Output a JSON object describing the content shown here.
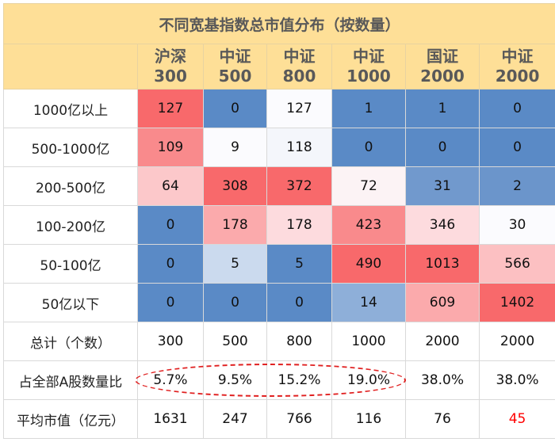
{
  "title": "不同宽基指数总市值分布（按数量）",
  "columns": [
    {
      "line1": "沪深",
      "line2": "300"
    },
    {
      "line1": "中证",
      "line2": "500"
    },
    {
      "line1": "中证",
      "line2": "800"
    },
    {
      "line1": "中证",
      "line2": "1000"
    },
    {
      "line1": "国证",
      "line2": "2000"
    },
    {
      "line1": "中证",
      "line2": "2000"
    }
  ],
  "rows": [
    {
      "label": "1000亿以上",
      "values": [
        "127",
        "0",
        "127",
        "1",
        "1",
        "0"
      ],
      "colors": [
        "#f8696b",
        "#5a8ac6",
        "#fbfbfe",
        "#5a8ac6",
        "#5a8ac6",
        "#5a8ac6"
      ]
    },
    {
      "label": "500-1000亿",
      "values": [
        "109",
        "9",
        "118",
        "0",
        "0",
        "0"
      ],
      "colors": [
        "#f98a8c",
        "#fbfbfe",
        "#f4f6fb",
        "#5a8ac6",
        "#5a8ac6",
        "#5a8ac6"
      ]
    },
    {
      "label": "200-500亿",
      "values": [
        "64",
        "308",
        "372",
        "72",
        "31",
        "2"
      ],
      "colors": [
        "#fcc8ca",
        "#f8696b",
        "#f8696b",
        "#fcf3f5",
        "#7199cd",
        "#6b95cb"
      ]
    },
    {
      "label": "100-200亿",
      "values": [
        "0",
        "178",
        "178",
        "423",
        "346",
        "30"
      ],
      "colors": [
        "#5a8ac6",
        "#fbaaac",
        "#fddbde",
        "#f98a8c",
        "#fddbde",
        "#fbfbfe"
      ]
    },
    {
      "label": "50-100亿",
      "values": [
        "0",
        "5",
        "5",
        "490",
        "1013",
        "566"
      ],
      "colors": [
        "#5a8ac6",
        "#cbdaee",
        "#5a8ac6",
        "#f8696b",
        "#f8696b",
        "#fcc0c2"
      ]
    },
    {
      "label": "50亿以下",
      "values": [
        "0",
        "0",
        "0",
        "14",
        "609",
        "1402"
      ],
      "colors": [
        "#5a8ac6",
        "#5a8ac6",
        "#5a8ac6",
        "#8eafd9",
        "#fbaaac",
        "#f8696b"
      ]
    }
  ],
  "summary": [
    {
      "label": "总计（个数）",
      "values": [
        "300",
        "500",
        "800",
        "1000",
        "2000",
        "2000"
      ]
    },
    {
      "label": "占全部A股数量比",
      "values": [
        "5.7%",
        "9.5%",
        "15.2%",
        "19.0%",
        "38.0%",
        "38.0%"
      ]
    },
    {
      "label": "平均市值（亿元）",
      "values": [
        "1631",
        "247",
        "766",
        "116",
        "76",
        "45"
      ],
      "highlight_last_color": "#ff0000"
    }
  ],
  "annotation": {
    "type": "dashed-ellipse",
    "color": "#e02020",
    "covers": [
      "5.7%",
      "9.5%",
      "15.2%",
      "19.0%"
    ]
  },
  "colors": {
    "header_bg": "#fedf97",
    "header_text": "#595959",
    "high": "#f8696b",
    "low": "#5a8ac6"
  },
  "chart_data": {
    "type": "heatmap",
    "title": "不同宽基指数总市值分布（按数量）",
    "x": [
      "沪深300",
      "中证500",
      "中证800",
      "中证1000",
      "国证2000",
      "中证2000"
    ],
    "y": [
      "1000亿以上",
      "500-1000亿",
      "200-500亿",
      "100-200亿",
      "50-100亿",
      "50亿以下"
    ],
    "values": [
      [
        127,
        0,
        127,
        1,
        1,
        0
      ],
      [
        109,
        9,
        118,
        0,
        0,
        0
      ],
      [
        64,
        308,
        372,
        72,
        31,
        2
      ],
      [
        0,
        178,
        178,
        423,
        346,
        30
      ],
      [
        0,
        5,
        5,
        490,
        1013,
        566
      ],
      [
        0,
        0,
        0,
        14,
        609,
        1402
      ]
    ],
    "totals": [
      300,
      500,
      800,
      1000,
      2000,
      2000
    ],
    "share_of_a_shares_pct": [
      5.7,
      9.5,
      15.2,
      19.0,
      38.0,
      38.0
    ],
    "avg_market_cap_yi": [
      1631,
      247,
      766,
      116,
      76,
      45
    ],
    "colorscale": [
      "#5a8ac6",
      "#fcfcff",
      "#f8696b"
    ]
  }
}
